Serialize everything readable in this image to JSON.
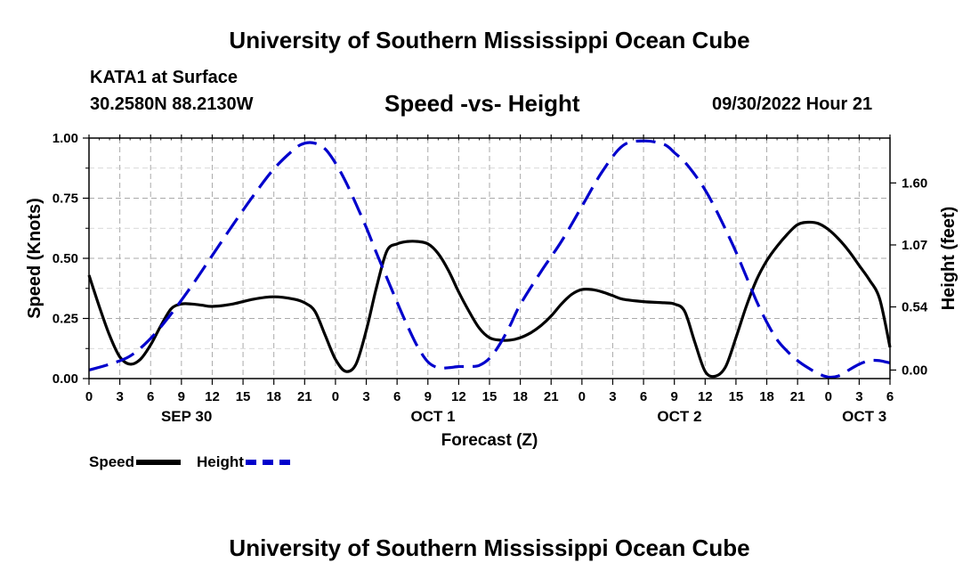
{
  "page": {
    "main_title": "University of Southern Mississippi Ocean Cube",
    "footer_title": "University of Southern Mississippi Ocean Cube",
    "station": "KATA1 at Surface",
    "coords": "30.2580N  88.2130W",
    "chart_title": "Speed -vs- Height",
    "stamp": "09/30/2022 Hour 21"
  },
  "legend": {
    "speed_label": "Speed",
    "height_label": "Height"
  },
  "chart_data": {
    "type": "line",
    "title": "Speed -vs- Height",
    "xlabel": "Forecast (Z)",
    "ylabel": "Speed (Knots)",
    "y2label": "Height (feet)",
    "x_range_hours": [
      0,
      78
    ],
    "ylim": [
      0,
      1
    ],
    "y2lim": [
      -0.073,
      1.984
    ],
    "xticks": [
      "0",
      "3",
      "6",
      "9",
      "12",
      "15",
      "18",
      "21",
      "0",
      "3",
      "6",
      "9",
      "12",
      "15",
      "18",
      "21",
      "0",
      "3",
      "6",
      "9",
      "12",
      "15",
      "18",
      "21",
      "0",
      "3",
      "6"
    ],
    "date_labels": [
      {
        "label": "SEP 30",
        "hour": 9.5
      },
      {
        "label": "OCT 1",
        "hour": 33.5
      },
      {
        "label": "OCT 2",
        "hour": 57.5
      },
      {
        "label": "OCT 3",
        "hour": 75.5
      }
    ],
    "yticks": [
      "0.00",
      "0.25",
      "0.50",
      "0.75",
      "1.00"
    ],
    "y2ticks": [
      "0.00",
      "0.54",
      "1.07",
      "1.60"
    ],
    "grid": true,
    "colors": {
      "speed": "#000000",
      "height": "#0000cc",
      "grid": "#aaaaaa"
    },
    "series": [
      {
        "name": "Speed",
        "axis": "left",
        "x": [
          0,
          1,
          2,
          3,
          4,
          5,
          6,
          7,
          8,
          9,
          10,
          11,
          12,
          14,
          16,
          18,
          20,
          21,
          22,
          23,
          24,
          25,
          26,
          27,
          28,
          29,
          30,
          31,
          32,
          33,
          34,
          35,
          36,
          37,
          38,
          39,
          40,
          41,
          42,
          43,
          44,
          45,
          46,
          47,
          48,
          49,
          50,
          51,
          52,
          54,
          56,
          57,
          58,
          59,
          60,
          61,
          62,
          63,
          64,
          65,
          66,
          67,
          68,
          69,
          70,
          71,
          72,
          73,
          74,
          75,
          76,
          77,
          78
        ],
        "y": [
          0.43,
          0.3,
          0.18,
          0.09,
          0.06,
          0.08,
          0.14,
          0.22,
          0.29,
          0.31,
          0.31,
          0.305,
          0.3,
          0.31,
          0.33,
          0.34,
          0.33,
          0.315,
          0.28,
          0.18,
          0.08,
          0.03,
          0.06,
          0.2,
          0.38,
          0.53,
          0.56,
          0.57,
          0.57,
          0.56,
          0.52,
          0.45,
          0.36,
          0.28,
          0.21,
          0.17,
          0.16,
          0.16,
          0.17,
          0.19,
          0.22,
          0.26,
          0.31,
          0.35,
          0.37,
          0.37,
          0.36,
          0.345,
          0.33,
          0.32,
          0.315,
          0.31,
          0.28,
          0.15,
          0.03,
          0.01,
          0.05,
          0.17,
          0.3,
          0.41,
          0.49,
          0.55,
          0.6,
          0.64,
          0.65,
          0.645,
          0.62,
          0.58,
          0.53,
          0.47,
          0.41,
          0.33,
          0.13
        ]
      },
      {
        "name": "Height",
        "axis": "right",
        "x": [
          0,
          2,
          4,
          6,
          8,
          10,
          12,
          14,
          16,
          18,
          20,
          21,
          22,
          23,
          24,
          25,
          26,
          27,
          28,
          29,
          30,
          31,
          32,
          33,
          34,
          35,
          36,
          37,
          38,
          39,
          40,
          41,
          42,
          44,
          46,
          48,
          50,
          52,
          54,
          56,
          57,
          58,
          59,
          60,
          61,
          62,
          63,
          64,
          65,
          66,
          67,
          68,
          69,
          70,
          71,
          72,
          73,
          74,
          75,
          76,
          77,
          78
        ],
        "y": [
          0.0,
          0.05,
          0.12,
          0.27,
          0.48,
          0.72,
          0.98,
          1.24,
          1.49,
          1.72,
          1.89,
          1.94,
          1.94,
          1.89,
          1.77,
          1.61,
          1.42,
          1.22,
          1.0,
          0.79,
          0.58,
          0.38,
          0.2,
          0.07,
          0.02,
          0.02,
          0.03,
          0.03,
          0.04,
          0.1,
          0.22,
          0.38,
          0.56,
          0.84,
          1.1,
          1.4,
          1.7,
          1.92,
          1.96,
          1.93,
          1.86,
          1.78,
          1.67,
          1.54,
          1.38,
          1.2,
          1.01,
          0.8,
          0.59,
          0.41,
          0.26,
          0.16,
          0.08,
          0.02,
          -0.03,
          -0.06,
          -0.05,
          0.0,
          0.05,
          0.08,
          0.08,
          0.06
        ]
      }
    ]
  }
}
